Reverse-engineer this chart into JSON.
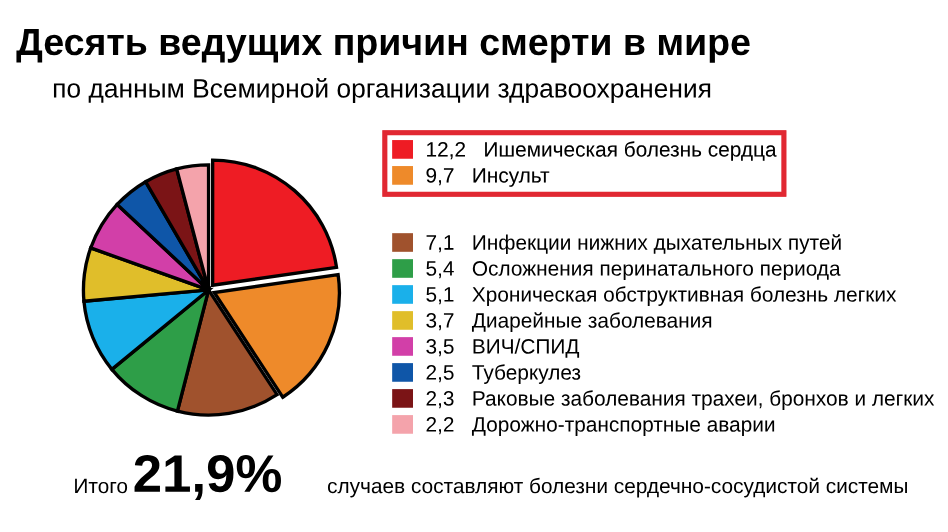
{
  "chart_data": {
    "type": "pie",
    "title": "Десять ведущих причин смерти в мире",
    "subtitle": "по данным Всемирной организации здравоохранения",
    "categories": [
      "Ишемическая болезнь сердца",
      "Инсульт",
      "Инфекции нижних дыхательных путей",
      "Осложнения перинатального периода",
      "Хроническая обструктивная болезнь легких",
      "Диарейные заболевания",
      "ВИЧ/СПИД",
      "Туберкулез",
      "Раковые заболевания трахеи, бронхов и легких",
      "Дорожно-транспортные аварии"
    ],
    "values": [
      12.2,
      9.7,
      7.1,
      5.4,
      5.1,
      3.7,
      3.5,
      2.5,
      2.3,
      2.2
    ],
    "value_labels": [
      "12,2",
      "9,7",
      "7,1",
      "5,4",
      "5,1",
      "3,7",
      "3,5",
      "2,5",
      "2,3",
      "2,2"
    ],
    "colors": [
      "#ee1c24",
      "#ee8a2a",
      "#a0522d",
      "#2e9e48",
      "#1ab0ea",
      "#e0be2a",
      "#d23fa8",
      "#0f56a8",
      "#7b1416",
      "#f4a3ab"
    ],
    "legend": "right",
    "annotations": [
      "Итого",
      "21,9%",
      "случаев составляют болезни сердечно-сосудистой системы"
    ]
  }
}
